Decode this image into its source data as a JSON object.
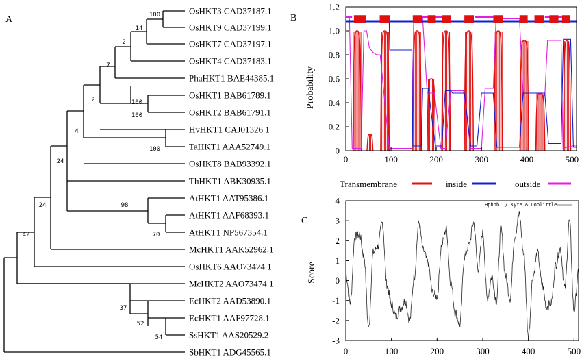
{
  "panels": {
    "a": "A",
    "b": "B",
    "c": "C"
  },
  "tree": {
    "leaves": [
      "OsHKT3 CAD37187.1",
      "OsHKT9 CAD37199.1",
      "OsHKT7 CAD37197.1",
      "OsHKT4 CAD37183.1",
      "PhaHKT1 BAE44385.1",
      "OsHKT1 BAB61789.1",
      "OsHKT2 BAB61791.1",
      "HvHKT1 CAJ01326.1",
      "TaHKT1 AAA52749.1",
      "OsHKT8 BAB93392.1",
      "ThHKT1 ABK30935.1",
      "AtHKT1 AAT95386.1",
      "AtHKT1 AAF68393.1",
      "AtHKT1 NP567354.1",
      "McHKT1 AAK52962.1",
      "OsHKT6 AAO73474.1",
      "McHKT2 AAO73474.1",
      "EcHKT2 AAD53890.1",
      "EcHKT1 AAF97728.1",
      "SsHKT1 AAS20529.2",
      "SbHKT1 ADG45565.1"
    ],
    "bootstrap": [
      "100",
      "14",
      "2",
      "7",
      "100",
      "2",
      "100",
      "4",
      "24",
      "100",
      "70",
      "98",
      "24",
      "42",
      "54",
      "52",
      "37"
    ]
  },
  "chart_data": [
    {
      "type": "line",
      "panel": "B",
      "ylabel": "Probability",
      "xlim": [
        0,
        510
      ],
      "ylim": [
        0,
        1.2
      ],
      "x_ticks": [
        "0",
        "100",
        "200",
        "300",
        "400",
        "500"
      ],
      "y_ticks": [
        "0",
        "0.2",
        "0.4",
        "0.6",
        "0.8",
        "1.0",
        "1.2"
      ],
      "legend": [
        "Transmembrane",
        "inside",
        "outside"
      ],
      "colors": {
        "transmembrane": "#e01010",
        "inside": "#1020d0",
        "outside": "#e020e0"
      },
      "transmembrane_segments": [
        [
          16,
          34,
          1.0
        ],
        [
          47,
          60,
          0.14
        ],
        [
          77,
          96,
          1.0
        ],
        [
          148,
          167,
          1.0
        ],
        [
          180,
          198,
          0.6
        ],
        [
          212,
          231,
          1.0
        ],
        [
          262,
          282,
          1.0
        ],
        [
          328,
          346,
          1.0
        ],
        [
          385,
          404,
          0.92
        ],
        [
          420,
          440,
          0.48
        ],
        [
          481,
          497,
          0.92
        ]
      ],
      "topology_bar": [
        [
          18,
          45
        ],
        [
          75,
          98
        ],
        [
          148,
          168
        ],
        [
          181,
          199
        ],
        [
          212,
          232
        ],
        [
          262,
          283
        ],
        [
          326,
          347
        ],
        [
          384,
          402
        ],
        [
          417,
          438
        ],
        [
          450,
          470
        ],
        [
          478,
          496
        ]
      ],
      "inside": [
        [
          0,
          1.08
        ],
        [
          96,
          1.08
        ],
        [
          97,
          0.84
        ],
        [
          146,
          0.84
        ],
        [
          148,
          0.04
        ],
        [
          167,
          0.04
        ],
        [
          170,
          0.52
        ],
        [
          182,
          0.52
        ],
        [
          198,
          0.04
        ],
        [
          212,
          0.04
        ],
        [
          220,
          0.5
        ],
        [
          232,
          0.5
        ],
        [
          236,
          0.48
        ],
        [
          262,
          0.48
        ],
        [
          276,
          0.04
        ],
        [
          290,
          0.04
        ],
        [
          300,
          0.48
        ],
        [
          326,
          0.48
        ],
        [
          334,
          0.03
        ],
        [
          384,
          0.03
        ],
        [
          392,
          0.48
        ],
        [
          420,
          0.48
        ],
        [
          440,
          0.48
        ],
        [
          448,
          0.06
        ],
        [
          476,
          0.06
        ],
        [
          481,
          0.93
        ],
        [
          497,
          0.93
        ],
        [
          503,
          0.03
        ],
        [
          510,
          0.03
        ]
      ],
      "outside": [
        [
          0,
          1.11
        ],
        [
          8,
          1.11
        ],
        [
          14,
          0.02
        ],
        [
          34,
          0.02
        ],
        [
          40,
          1.0
        ],
        [
          46,
          1.0
        ],
        [
          52,
          0.86
        ],
        [
          60,
          0.82
        ],
        [
          68,
          0.8
        ],
        [
          76,
          0.8
        ],
        [
          96,
          0.02
        ],
        [
          146,
          0.02
        ],
        [
          150,
          1.1
        ],
        [
          170,
          1.1
        ],
        [
          180,
          0.48
        ],
        [
          196,
          0.48
        ],
        [
          210,
          0.02
        ],
        [
          220,
          0.02
        ],
        [
          232,
          0.5
        ],
        [
          260,
          0.5
        ],
        [
          276,
          0.02
        ],
        [
          300,
          0.02
        ],
        [
          308,
          0.52
        ],
        [
          326,
          0.52
        ],
        [
          332,
          1.1
        ],
        [
          364,
          1.1
        ],
        [
          384,
          1.1
        ],
        [
          392,
          0.48
        ],
        [
          420,
          0.48
        ],
        [
          440,
          0.46
        ],
        [
          446,
          0.92
        ],
        [
          476,
          0.92
        ],
        [
          480,
          0.02
        ],
        [
          500,
          0.04
        ],
        [
          510,
          0.04
        ]
      ]
    },
    {
      "type": "line",
      "panel": "C",
      "ylabel": "Score",
      "legend": [
        "Hphob. / Kyte & Doolittle"
      ],
      "xlim": [
        0,
        510
      ],
      "ylim": [
        -3,
        4
      ],
      "x_ticks": [
        "0",
        "100",
        "200",
        "300",
        "400",
        "500"
      ],
      "y_ticks": [
        "-3",
        "-2",
        "-1",
        "0",
        "1",
        "2",
        "3",
        "4"
      ],
      "x": [
        0,
        10,
        20,
        30,
        40,
        50,
        60,
        70,
        80,
        90,
        100,
        110,
        120,
        130,
        140,
        150,
        160,
        170,
        180,
        190,
        200,
        210,
        220,
        230,
        240,
        250,
        260,
        270,
        280,
        290,
        300,
        310,
        320,
        330,
        340,
        350,
        360,
        370,
        380,
        390,
        400,
        410,
        420,
        430,
        440,
        450,
        460,
        470,
        480,
        490,
        500,
        510
      ],
      "y": [
        0.3,
        -1.1,
        2.2,
        2.3,
        1.2,
        -2.4,
        1.4,
        1.7,
        2.9,
        -0.2,
        -1.2,
        -1.8,
        -1.4,
        -1.0,
        -2.0,
        0.2,
        2.9,
        1.5,
        0.9,
        -0.6,
        -0.8,
        1.8,
        2.6,
        -0.1,
        -1.6,
        -2.2,
        1.2,
        1.8,
        2.9,
        0.6,
        2.4,
        -0.9,
        0.2,
        -1.0,
        2.6,
        0.2,
        -0.9,
        2.2,
        3.3,
        1.3,
        -2.8,
        0.2,
        1.4,
        -0.2,
        -1.3,
        -1.1,
        0.8,
        1.6,
        -0.4,
        3.0,
        -1.5,
        0.4
      ]
    }
  ]
}
